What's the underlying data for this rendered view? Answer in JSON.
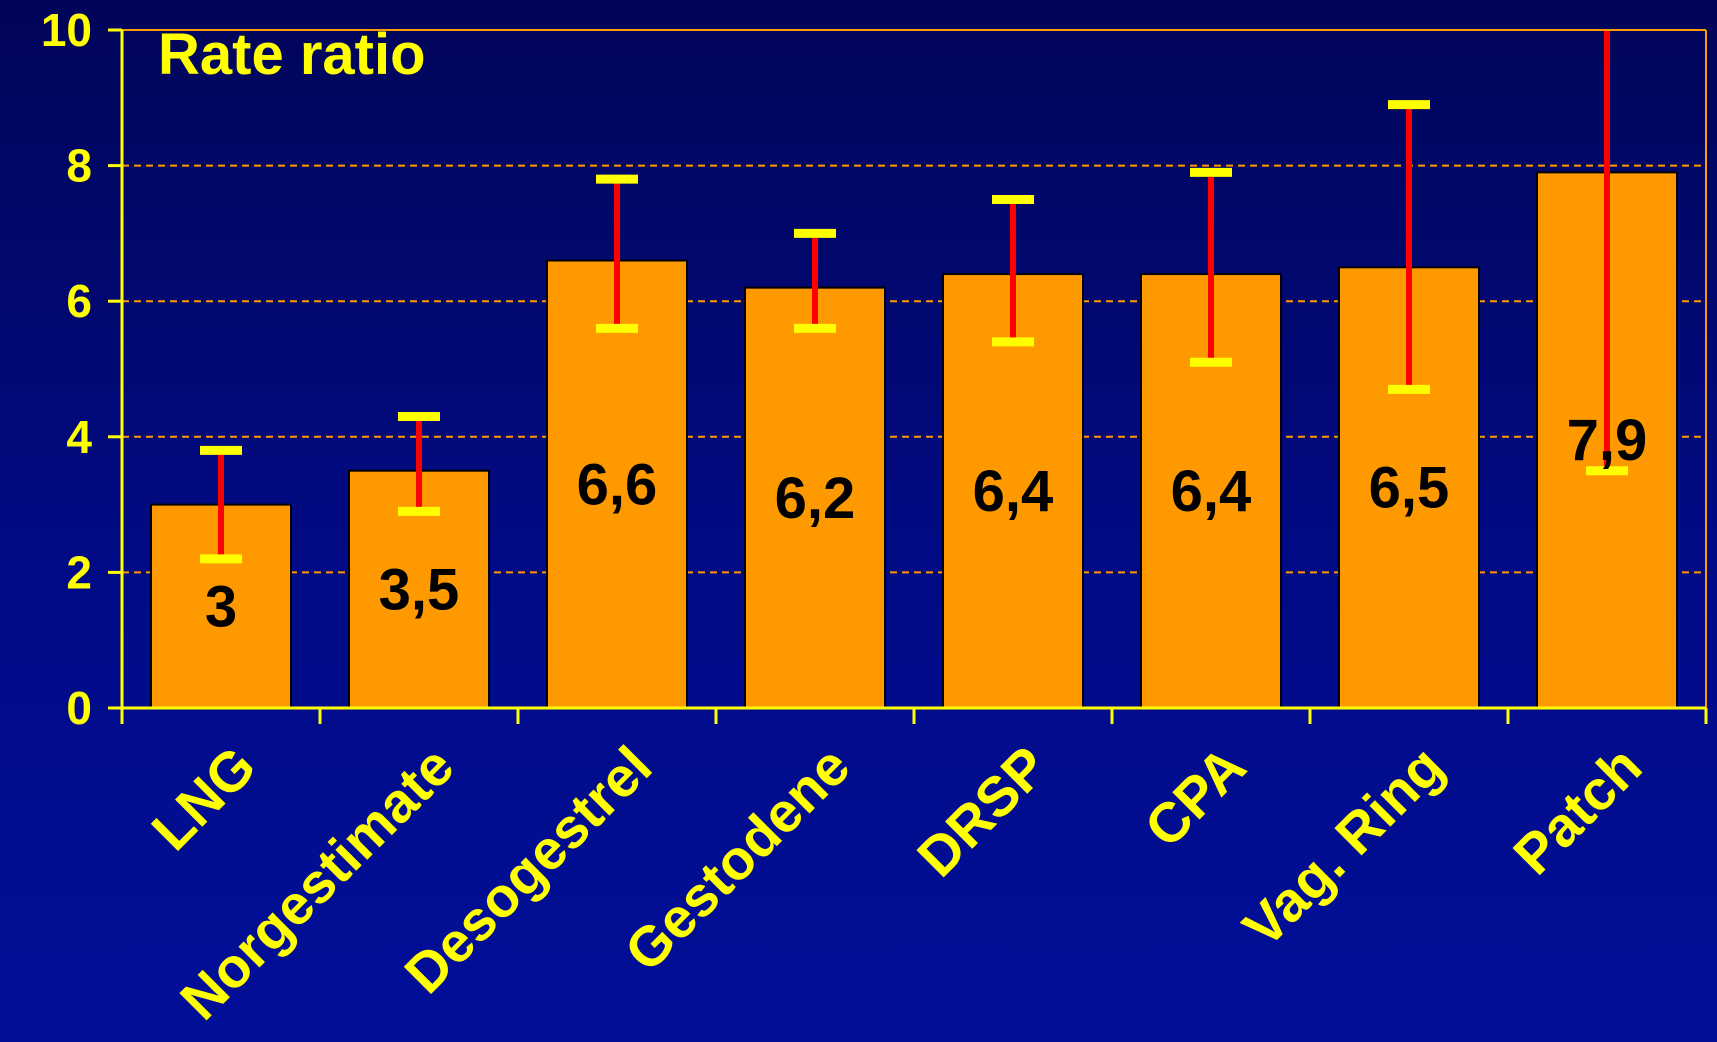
{
  "chart_data": {
    "type": "bar",
    "title": "Rate ratio",
    "categories": [
      "LNG",
      "Norgestimate",
      "Desogestrel",
      "Gestodene",
      "DRSP",
      "CPA",
      "Vag. Ring",
      "Patch"
    ],
    "series": [
      {
        "values": [
          3,
          3.5,
          6.6,
          6.2,
          6.4,
          6.4,
          6.5,
          7.9
        ],
        "labels": [
          "3",
          "3,5",
          "6,6",
          "6,2",
          "6,4",
          "6,4",
          "6,5",
          "7,9"
        ],
        "error_low": [
          2.2,
          2.9,
          5.6,
          5.6,
          5.4,
          5.1,
          4.7,
          3.5
        ],
        "error_high": [
          3.8,
          4.3,
          7.8,
          7.0,
          7.5,
          7.9,
          8.9,
          10
        ]
      }
    ],
    "yticks": [
      "0",
      "2",
      "4",
      "6",
      "8",
      "10"
    ],
    "ylim": [
      0,
      10
    ],
    "grid": "horizontal dashed",
    "colors": {
      "bar": "#ff9900",
      "bar_outline": "#000000",
      "error_line": "#ff0000",
      "error_cap": "#ffff00",
      "axis": "#ffff00",
      "grid": "#ff9900",
      "text": "#ffff00"
    }
  }
}
